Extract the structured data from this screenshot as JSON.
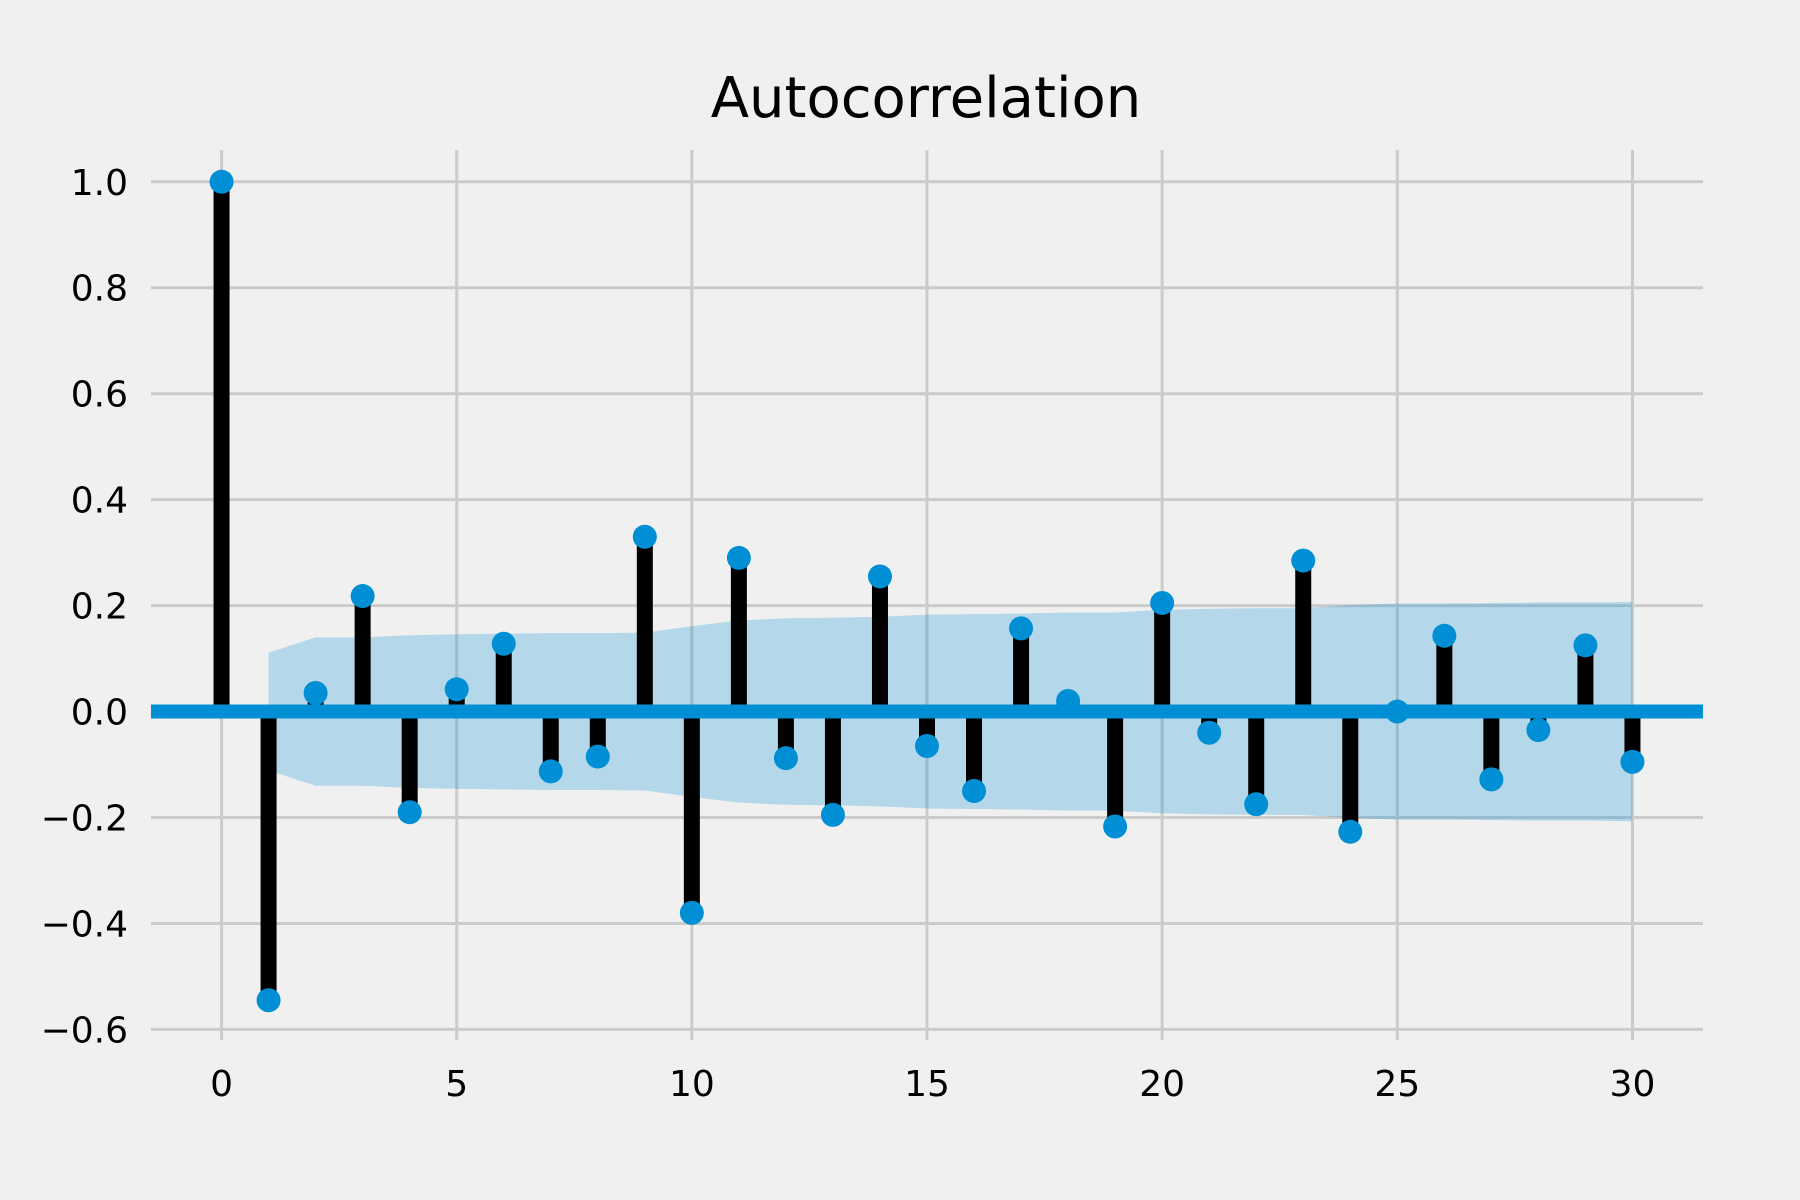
{
  "chart_data": {
    "type": "stem",
    "title": "Autocorrelation",
    "xlabel": "",
    "ylabel": "",
    "xlim": [
      -1.5,
      31.5
    ],
    "ylim": [
      -0.62,
      1.06
    ],
    "grid": true,
    "x_ticks": [
      0,
      5,
      10,
      15,
      20,
      25,
      30
    ],
    "x_tick_labels": [
      "0",
      "5",
      "10",
      "15",
      "20",
      "25",
      "30"
    ],
    "y_ticks": [
      -0.6,
      -0.4,
      -0.2,
      0.0,
      0.2,
      0.4,
      0.6,
      0.8,
      1.0
    ],
    "y_tick_labels": [
      "−0.6",
      "−0.4",
      "−0.2",
      "0.0",
      "0.2",
      "0.4",
      "0.6",
      "0.8",
      "1.0"
    ],
    "lags": [
      0,
      1,
      2,
      3,
      4,
      5,
      6,
      7,
      8,
      9,
      10,
      11,
      12,
      13,
      14,
      15,
      16,
      17,
      18,
      19,
      20,
      21,
      22,
      23,
      24,
      25,
      26,
      27,
      28,
      29,
      30
    ],
    "values": [
      1.0,
      -0.545,
      0.035,
      0.218,
      -0.19,
      0.042,
      0.128,
      -0.113,
      -0.085,
      0.33,
      -0.38,
      0.29,
      -0.088,
      -0.195,
      0.255,
      -0.065,
      -0.15,
      0.157,
      0.02,
      -0.217,
      0.205,
      -0.04,
      -0.175,
      0.285,
      -0.227,
      0.0,
      0.143,
      -0.128,
      -0.035,
      0.125,
      -0.095
    ],
    "confidence_band": {
      "lags": [
        1,
        2,
        3,
        4,
        5,
        6,
        7,
        8,
        9,
        10,
        11,
        12,
        13,
        14,
        15,
        16,
        17,
        18,
        19,
        20,
        21,
        22,
        23,
        24,
        25,
        26,
        27,
        28,
        29,
        30
      ],
      "upper": [
        0.111,
        0.14,
        0.14,
        0.144,
        0.146,
        0.147,
        0.148,
        0.148,
        0.149,
        0.161,
        0.172,
        0.176,
        0.177,
        0.179,
        0.183,
        0.184,
        0.185,
        0.187,
        0.187,
        0.192,
        0.194,
        0.195,
        0.195,
        0.201,
        0.204,
        0.204,
        0.205,
        0.206,
        0.206,
        0.207
      ],
      "lower": [
        -0.111,
        -0.14,
        -0.14,
        -0.144,
        -0.146,
        -0.147,
        -0.148,
        -0.148,
        -0.149,
        -0.161,
        -0.172,
        -0.176,
        -0.177,
        -0.179,
        -0.183,
        -0.184,
        -0.185,
        -0.187,
        -0.187,
        -0.192,
        -0.194,
        -0.195,
        -0.195,
        -0.201,
        -0.204,
        -0.204,
        -0.205,
        -0.206,
        -0.206,
        -0.207
      ]
    },
    "colors": {
      "background": "#f0f0f0",
      "grid": "#cbcbcb",
      "stem": "#000000",
      "marker": "#008fd5",
      "zero_line": "#008fd5",
      "band": "#008fd5"
    }
  }
}
